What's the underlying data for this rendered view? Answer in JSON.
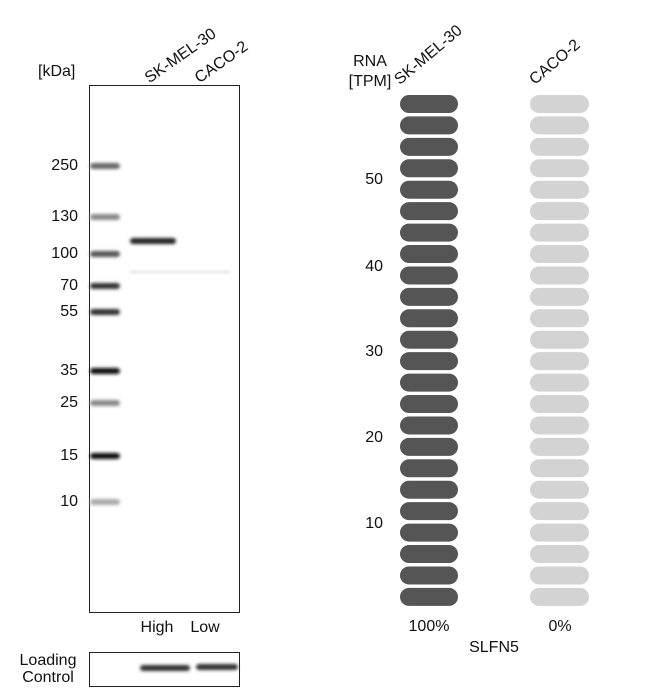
{
  "blot": {
    "unit": "[kDa]",
    "lanes": [
      "SK-MEL-30",
      "CACO-2"
    ],
    "markers": [
      "250",
      "130",
      "100",
      "70",
      "55",
      "35",
      "25",
      "15",
      "10"
    ],
    "levels": [
      "High",
      "Low"
    ],
    "loading_control": [
      "Loading",
      "Control"
    ]
  },
  "rna": {
    "unit": [
      "RNA",
      "[TPM]"
    ],
    "samples": [
      "SK-MEL-30",
      "CACO-2"
    ],
    "ticks": [
      "10",
      "20",
      "30",
      "40",
      "50"
    ],
    "percentages": [
      "100%",
      "0%"
    ],
    "gene": "SLFN5"
  }
}
